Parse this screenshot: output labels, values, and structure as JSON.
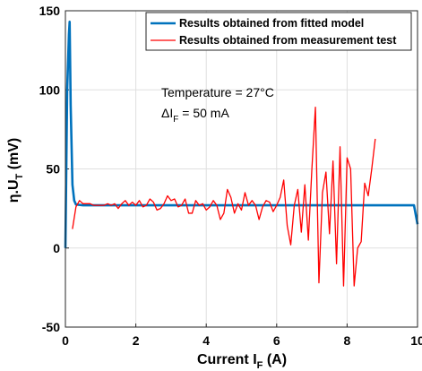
{
  "chart_data": {
    "type": "line",
    "xlabel": {
      "text": "Current I",
      "sub": "F",
      "suffix": " (A)"
    },
    "ylabel": {
      "text": "η.U",
      "sub": "T",
      "suffix": " (mV)"
    },
    "annotations": [
      {
        "text": "Temperature = 27°C"
      },
      {
        "text": "ΔI",
        "sub": "F",
        "suffix": " = 50 mA"
      }
    ],
    "xlim": [
      0,
      10
    ],
    "ylim": [
      -50,
      150
    ],
    "xticks": [
      0,
      2,
      4,
      6,
      8,
      10
    ],
    "yticks": [
      -50,
      0,
      50,
      100,
      150
    ],
    "grid": true,
    "legend": "top-right",
    "series": [
      {
        "name": "Results obtained from fitted model",
        "color": "#0072bd",
        "x": [
          0,
          0.05,
          0.1,
          0.12,
          0.15,
          0.2,
          0.25,
          0.3,
          0.5,
          9.9,
          10
        ],
        "values": [
          0,
          100,
          135,
          143,
          90,
          40,
          30,
          27.5,
          27,
          27,
          15
        ]
      },
      {
        "name": "Results obtained from measurement test",
        "color": "#ff0000",
        "x": [
          0.2,
          0.3,
          0.4,
          0.5,
          0.6,
          0.7,
          0.8,
          0.9,
          1.0,
          1.1,
          1.2,
          1.3,
          1.4,
          1.5,
          1.6,
          1.7,
          1.8,
          1.9,
          2.0,
          2.1,
          2.2,
          2.3,
          2.4,
          2.5,
          2.6,
          2.7,
          2.8,
          2.9,
          3.0,
          3.1,
          3.2,
          3.3,
          3.4,
          3.5,
          3.6,
          3.7,
          3.8,
          3.9,
          4.0,
          4.1,
          4.2,
          4.3,
          4.4,
          4.5,
          4.6,
          4.7,
          4.8,
          4.9,
          5.0,
          5.1,
          5.2,
          5.3,
          5.4,
          5.5,
          5.6,
          5.7,
          5.8,
          5.9,
          6.0,
          6.1,
          6.2,
          6.3,
          6.4,
          6.5,
          6.6,
          6.7,
          6.8,
          6.9,
          7.0,
          7.1,
          7.2,
          7.3,
          7.4,
          7.5,
          7.6,
          7.7,
          7.8,
          7.9,
          8.0,
          8.1,
          8.2,
          8.3,
          8.4,
          8.5,
          8.6,
          8.7,
          8.8
        ],
        "values": [
          12,
          26,
          30,
          28,
          28,
          28,
          27,
          27,
          27,
          27,
          28,
          27,
          28,
          25,
          28,
          30,
          27,
          29,
          27,
          30,
          26,
          27,
          31,
          29,
          24,
          25,
          28,
          33,
          30,
          31,
          26,
          27,
          31,
          22,
          22,
          30,
          27,
          28,
          24,
          26,
          30,
          27,
          18,
          22,
          37,
          32,
          22,
          28,
          24,
          35,
          27,
          30,
          27,
          18,
          26,
          30,
          29,
          23,
          27,
          32,
          43,
          14,
          2,
          27,
          37,
          10,
          40,
          5,
          50,
          89,
          -22,
          35,
          48,
          9,
          55,
          -10,
          64,
          -24,
          57,
          50,
          -24,
          0,
          4,
          41,
          33,
          50,
          69
        ]
      }
    ]
  }
}
